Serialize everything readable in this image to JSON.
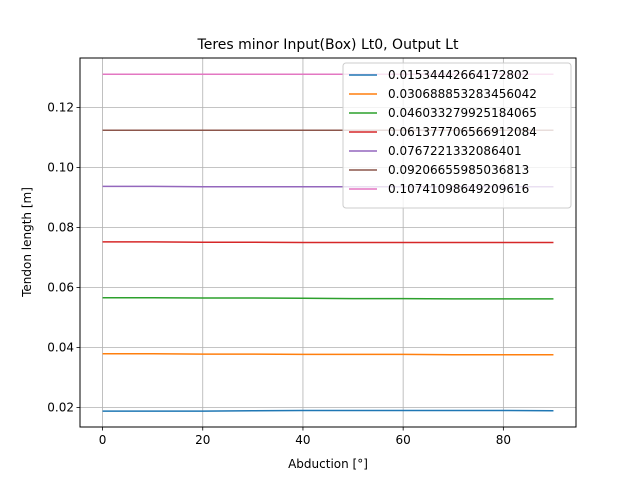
{
  "chart_data": {
    "type": "line",
    "title": "Teres minor Input(Box) Lt0, Output Lt",
    "xlabel": "Abduction [°]",
    "ylabel": "Tendon length [m]",
    "xlim": [
      -4.5,
      94.5
    ],
    "ylim": [
      0.0135,
      0.1365
    ],
    "xticks": [
      0,
      20,
      40,
      60,
      80
    ],
    "yticks": [
      0.02,
      0.04,
      0.06,
      0.08,
      0.1,
      0.12
    ],
    "grid": true,
    "legend_position": "top-right",
    "x": [
      0,
      10,
      20,
      30,
      40,
      50,
      60,
      70,
      80,
      90
    ],
    "series": [
      {
        "name": "0.01534442664172802",
        "color": "#1f77b4",
        "values": [
          0.0188,
          0.0188,
          0.0188,
          0.0189,
          0.019,
          0.019,
          0.019,
          0.019,
          0.019,
          0.0189
        ]
      },
      {
        "name": "0.030688853283456042",
        "color": "#ff7f0e",
        "values": [
          0.0379,
          0.0379,
          0.0378,
          0.0378,
          0.0377,
          0.0377,
          0.0377,
          0.0376,
          0.0376,
          0.0376
        ]
      },
      {
        "name": "0.046033279925184065",
        "color": "#2ca02c",
        "values": [
          0.0566,
          0.0566,
          0.0565,
          0.0565,
          0.0564,
          0.0563,
          0.0563,
          0.0562,
          0.0562,
          0.0562
        ]
      },
      {
        "name": "0.061377706566912084",
        "color": "#d62728",
        "values": [
          0.0752,
          0.0752,
          0.0751,
          0.0751,
          0.075,
          0.075,
          0.075,
          0.075,
          0.075,
          0.075
        ]
      },
      {
        "name": "0.0767221332086401",
        "color": "#9467bd",
        "values": [
          0.0937,
          0.0937,
          0.0936,
          0.0936,
          0.0936,
          0.0936,
          0.0936,
          0.0936,
          0.0936,
          0.0936
        ]
      },
      {
        "name": "0.09206655985036813",
        "color": "#8c564b",
        "values": [
          0.1124,
          0.1124,
          0.1124,
          0.1124,
          0.1124,
          0.1124,
          0.1124,
          0.1124,
          0.1124,
          0.1124
        ]
      },
      {
        "name": "0.10741098649209616",
        "color": "#e377c2",
        "values": [
          0.1311,
          0.1311,
          0.1311,
          0.1311,
          0.1311,
          0.1311,
          0.1311,
          0.1311,
          0.1311,
          0.1311
        ]
      }
    ]
  }
}
